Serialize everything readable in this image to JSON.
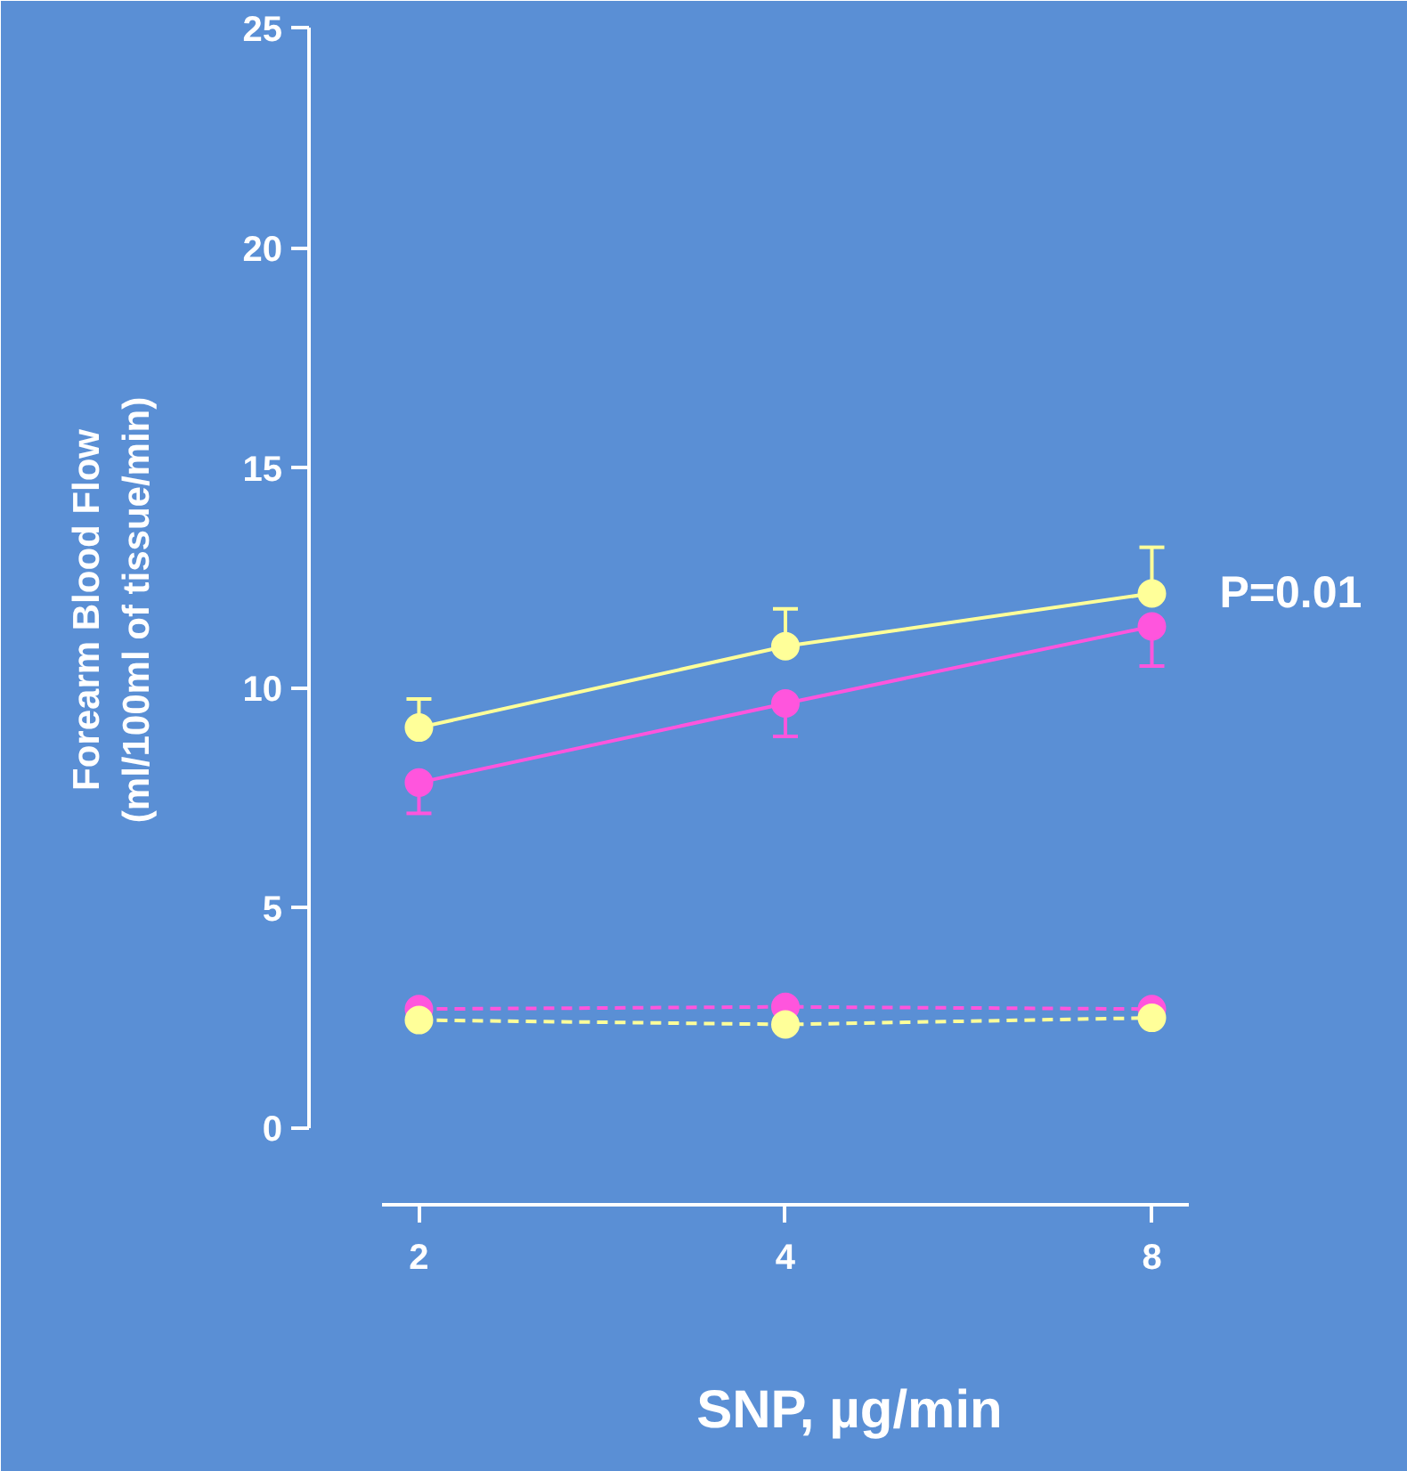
{
  "chart_data": {
    "type": "line",
    "xlabel": "SNP, µg/min",
    "ylabel": "Forearm Blood Flow\n(ml/100ml of tissue/min)",
    "categories": [
      "2",
      "4",
      "8"
    ],
    "ylim": [
      -1.75,
      25.3
    ],
    "yticks": [
      0,
      5,
      10,
      15,
      20,
      25
    ],
    "grid": false,
    "marker": "circle",
    "series": [
      {
        "color": "#ffff99",
        "values": [
          9.1,
          10.95,
          12.15
        ],
        "errors": [
          [
            9.1,
            9.75
          ],
          [
            10.95,
            11.8
          ],
          [
            12.15,
            13.2
          ]
        ],
        "line_style": "solid"
      },
      {
        "color": "#ff55dd",
        "values": [
          7.85,
          9.65,
          11.4
        ],
        "errors": [
          [
            7.15,
            7.85
          ],
          [
            8.9,
            9.65
          ],
          [
            10.5,
            11.4
          ]
        ],
        "line_style": "solid"
      },
      {
        "color": "#ff55dd",
        "values": [
          2.7,
          2.75,
          2.7
        ],
        "line_style": "dashed"
      },
      {
        "color": "#ffff99",
        "values": [
          2.45,
          2.35,
          2.5
        ],
        "line_style": "dashed"
      }
    ],
    "annotations": [
      {
        "text": "P=0.01",
        "x": "8",
        "y": 12.15
      }
    ]
  }
}
